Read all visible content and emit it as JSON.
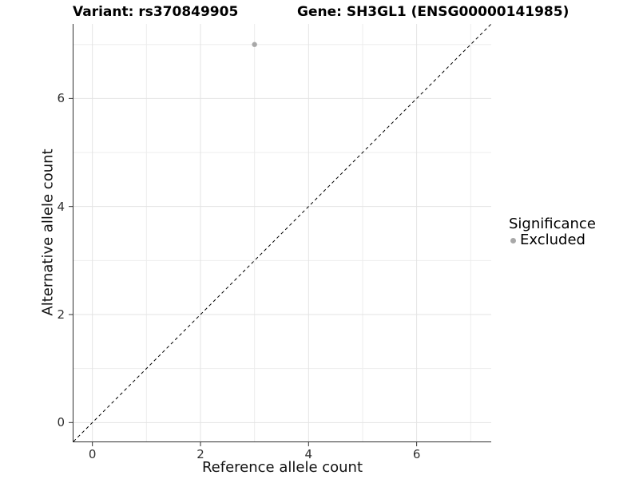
{
  "titles": {
    "variant": "Variant: rs370849905",
    "gene": "Gene: SH3GL1 (ENSG00000141985)"
  },
  "axes": {
    "x": {
      "label": "Reference allele count"
    },
    "y": {
      "label": "Alternative allele count"
    }
  },
  "legend": {
    "title": "Significance",
    "items": [
      {
        "label": "Excluded",
        "color": "#a8a8a8"
      }
    ]
  },
  "chart_data": {
    "type": "scatter",
    "title": "Variant: rs370849905 | Gene: SH3GL1 (ENSG00000141985)",
    "xlabel": "Reference allele count",
    "ylabel": "Alternative allele count",
    "xlim": [
      -0.35,
      7.38
    ],
    "ylim": [
      -0.35,
      7.38
    ],
    "x_ticks": [
      0,
      2,
      4,
      6
    ],
    "y_ticks": [
      0,
      2,
      4,
      6
    ],
    "grid_major": [
      0,
      2,
      4,
      6
    ],
    "grid_minor": [
      1,
      3,
      5,
      7
    ],
    "grid_on": true,
    "legend_position": "right",
    "series": [
      {
        "name": "Excluded",
        "color": "#a8a8a8",
        "points": [
          {
            "x": 3,
            "y": 7
          }
        ]
      }
    ],
    "reference_line": {
      "kind": "identity",
      "slope": 1,
      "intercept": 0,
      "style": "dashed",
      "color": "#000000"
    },
    "colors": {
      "grid_major": "#e3e3e3",
      "grid_minor": "#ededed",
      "axis_line": "#2f2f2f",
      "tick_mark": "#2f2f2f",
      "point": "#a8a8a8"
    }
  }
}
